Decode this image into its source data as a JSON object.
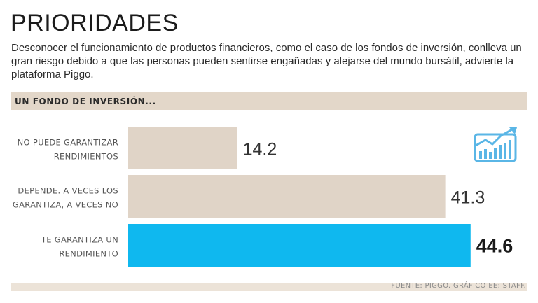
{
  "header": {
    "title": "PRIORIDADES",
    "description": "Desconocer el funcionamiento de productos financieros, como el caso de los fondos de inversión, conlleva un gran riesgo debido a que las personas pueden sentirse engañadas y alejarse del mundo bursátil, advierte la plataforma Piggo."
  },
  "section": {
    "label": "UN FONDO DE INVERSIÓN..."
  },
  "footer": {
    "source": "FUENTE: PIGGO. GRÁFICO EE: STAFF."
  },
  "icon": {
    "name": "trending-up-chart-icon",
    "color": "#5ab6e6"
  },
  "colors": {
    "bar_default": "#e0d4c7",
    "bar_highlight": "#0fb8ef",
    "label": "#555555",
    "value": "#333333"
  },
  "chart_data": {
    "type": "bar",
    "orientation": "horizontal",
    "categories": [
      [
        "NO PUEDE GARANTIZAR",
        "RENDIMIENTOS"
      ],
      [
        "DEPENDE. A VECES LOS",
        "GARANTIZA, A VECES NO"
      ],
      [
        "TE GARANTIZA UN",
        "RENDIMIENTO"
      ]
    ],
    "values": [
      14.2,
      41.3,
      44.6
    ],
    "value_labels": [
      "14.2",
      "41.3",
      "44.6"
    ],
    "highlight_index": 2,
    "xlim": [
      0,
      49
    ]
  }
}
